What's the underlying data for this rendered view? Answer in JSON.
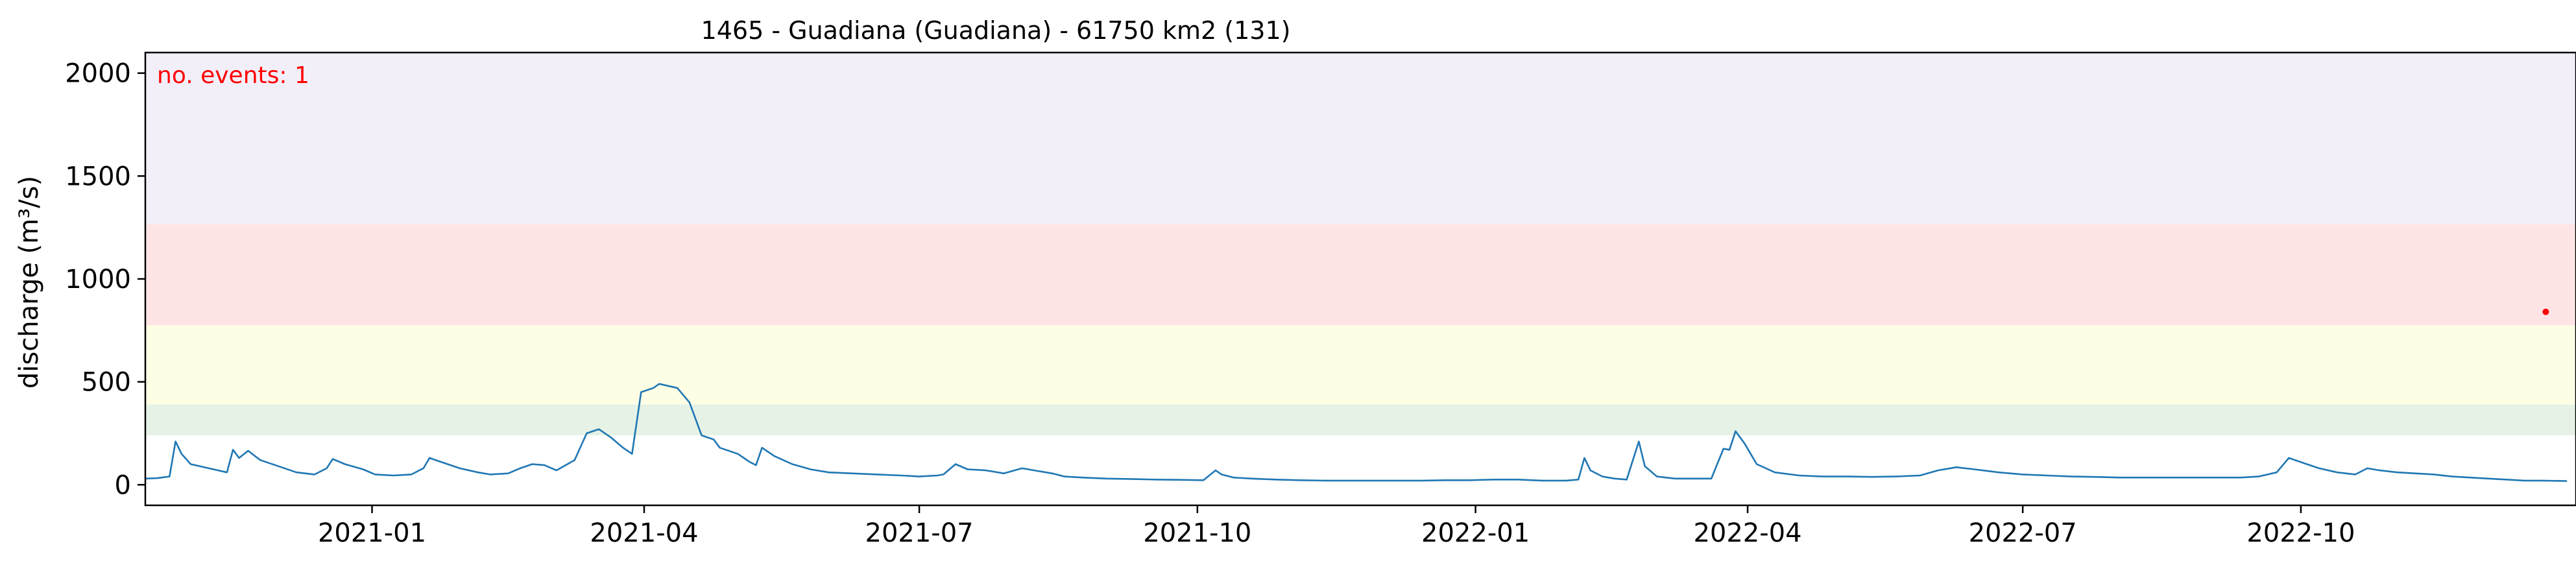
{
  "chart_data": {
    "type": "line",
    "title": "1465 - Guadiana (Guadiana) - 61750 km2 (131)",
    "ylabel": "discharge (m³/s)",
    "xlabel": "",
    "x_range": [
      "2020-10-18",
      "2022-12-31"
    ],
    "ylim": [
      -100,
      2100
    ],
    "y_ticks": [
      0,
      500,
      1000,
      1500,
      2000
    ],
    "x_ticks": [
      {
        "date": "2021-01-01",
        "label": "2021-01"
      },
      {
        "date": "2021-04-01",
        "label": "2021-04"
      },
      {
        "date": "2021-07-01",
        "label": "2021-07"
      },
      {
        "date": "2021-10-01",
        "label": "2021-10"
      },
      {
        "date": "2022-01-01",
        "label": "2022-01"
      },
      {
        "date": "2022-04-01",
        "label": "2022-04"
      },
      {
        "date": "2022-07-01",
        "label": "2022-07"
      },
      {
        "date": "2022-10-01",
        "label": "2022-10"
      }
    ],
    "threshold_bands": [
      {
        "from": 240,
        "to": 390,
        "color": "#e5f2e5"
      },
      {
        "from": 390,
        "to": 775,
        "color": "#fefee5"
      },
      {
        "from": 775,
        "to": 1265,
        "color": "#ffe4e6"
      },
      {
        "from": 1265,
        "to": 2100,
        "color": "#f2eff9"
      }
    ],
    "grid": false,
    "legend": "none",
    "series": [
      {
        "color": "#1f77b4",
        "points": [
          [
            "2020-10-18",
            30
          ],
          [
            "2020-10-22",
            32
          ],
          [
            "2020-10-26",
            40
          ],
          [
            "2020-10-28",
            210
          ],
          [
            "2020-10-30",
            150
          ],
          [
            "2020-11-02",
            100
          ],
          [
            "2020-11-08",
            80
          ],
          [
            "2020-11-14",
            60
          ],
          [
            "2020-11-16",
            170
          ],
          [
            "2020-11-18",
            130
          ],
          [
            "2020-11-21",
            165
          ],
          [
            "2020-11-25",
            120
          ],
          [
            "2020-12-01",
            90
          ],
          [
            "2020-12-07",
            60
          ],
          [
            "2020-12-13",
            50
          ],
          [
            "2020-12-17",
            80
          ],
          [
            "2020-12-19",
            125
          ],
          [
            "2020-12-23",
            100
          ],
          [
            "2020-12-29",
            75
          ],
          [
            "2021-01-02",
            50
          ],
          [
            "2021-01-08",
            45
          ],
          [
            "2021-01-14",
            50
          ],
          [
            "2021-01-18",
            80
          ],
          [
            "2021-01-20",
            130
          ],
          [
            "2021-01-24",
            110
          ],
          [
            "2021-01-30",
            80
          ],
          [
            "2021-02-05",
            60
          ],
          [
            "2021-02-09",
            50
          ],
          [
            "2021-02-15",
            55
          ],
          [
            "2021-02-19",
            80
          ],
          [
            "2021-02-23",
            100
          ],
          [
            "2021-02-27",
            95
          ],
          [
            "2021-03-03",
            70
          ],
          [
            "2021-03-09",
            120
          ],
          [
            "2021-03-13",
            250
          ],
          [
            "2021-03-17",
            270
          ],
          [
            "2021-03-21",
            230
          ],
          [
            "2021-03-25",
            180
          ],
          [
            "2021-03-28",
            150
          ],
          [
            "2021-03-31",
            450
          ],
          [
            "2021-04-04",
            470
          ],
          [
            "2021-04-06",
            490
          ],
          [
            "2021-04-12",
            470
          ],
          [
            "2021-04-16",
            400
          ],
          [
            "2021-04-20",
            240
          ],
          [
            "2021-04-24",
            220
          ],
          [
            "2021-04-26",
            180
          ],
          [
            "2021-05-02",
            150
          ],
          [
            "2021-05-06",
            110
          ],
          [
            "2021-05-08",
            95
          ],
          [
            "2021-05-10",
            180
          ],
          [
            "2021-05-14",
            140
          ],
          [
            "2021-05-20",
            100
          ],
          [
            "2021-05-26",
            75
          ],
          [
            "2021-06-01",
            60
          ],
          [
            "2021-06-09",
            55
          ],
          [
            "2021-06-17",
            50
          ],
          [
            "2021-06-25",
            45
          ],
          [
            "2021-07-01",
            40
          ],
          [
            "2021-07-07",
            45
          ],
          [
            "2021-07-09",
            50
          ],
          [
            "2021-07-13",
            100
          ],
          [
            "2021-07-17",
            75
          ],
          [
            "2021-07-23",
            70
          ],
          [
            "2021-07-29",
            55
          ],
          [
            "2021-08-04",
            80
          ],
          [
            "2021-08-08",
            70
          ],
          [
            "2021-08-14",
            55
          ],
          [
            "2021-08-18",
            40
          ],
          [
            "2021-08-24",
            35
          ],
          [
            "2021-09-01",
            30
          ],
          [
            "2021-09-09",
            28
          ],
          [
            "2021-09-17",
            25
          ],
          [
            "2021-09-25",
            24
          ],
          [
            "2021-10-03",
            22
          ],
          [
            "2021-10-07",
            70
          ],
          [
            "2021-10-09",
            50
          ],
          [
            "2021-10-13",
            35
          ],
          [
            "2021-10-19",
            30
          ],
          [
            "2021-10-27",
            25
          ],
          [
            "2021-11-04",
            22
          ],
          [
            "2021-11-12",
            20
          ],
          [
            "2021-11-20",
            20
          ],
          [
            "2021-11-28",
            20
          ],
          [
            "2021-12-06",
            20
          ],
          [
            "2021-12-14",
            20
          ],
          [
            "2021-12-22",
            22
          ],
          [
            "2021-12-30",
            22
          ],
          [
            "2022-01-07",
            25
          ],
          [
            "2022-01-15",
            25
          ],
          [
            "2022-01-23",
            20
          ],
          [
            "2022-01-31",
            20
          ],
          [
            "2022-02-04",
            25
          ],
          [
            "2022-02-06",
            130
          ],
          [
            "2022-02-08",
            70
          ],
          [
            "2022-02-12",
            40
          ],
          [
            "2022-02-16",
            30
          ],
          [
            "2022-02-20",
            25
          ],
          [
            "2022-02-24",
            210
          ],
          [
            "2022-02-26",
            90
          ],
          [
            "2022-03-02",
            40
          ],
          [
            "2022-03-08",
            30
          ],
          [
            "2022-03-14",
            30
          ],
          [
            "2022-03-20",
            30
          ],
          [
            "2022-03-24",
            175
          ],
          [
            "2022-03-26",
            170
          ],
          [
            "2022-03-28",
            260
          ],
          [
            "2022-03-31",
            200
          ],
          [
            "2022-04-04",
            100
          ],
          [
            "2022-04-10",
            60
          ],
          [
            "2022-04-18",
            45
          ],
          [
            "2022-04-26",
            40
          ],
          [
            "2022-05-04",
            40
          ],
          [
            "2022-05-12",
            38
          ],
          [
            "2022-05-20",
            40
          ],
          [
            "2022-05-28",
            45
          ],
          [
            "2022-06-03",
            70
          ],
          [
            "2022-06-09",
            85
          ],
          [
            "2022-06-15",
            75
          ],
          [
            "2022-06-23",
            60
          ],
          [
            "2022-07-01",
            50
          ],
          [
            "2022-07-09",
            45
          ],
          [
            "2022-07-17",
            40
          ],
          [
            "2022-07-25",
            38
          ],
          [
            "2022-08-02",
            35
          ],
          [
            "2022-08-10",
            35
          ],
          [
            "2022-08-18",
            35
          ],
          [
            "2022-08-26",
            35
          ],
          [
            "2022-09-03",
            35
          ],
          [
            "2022-09-11",
            35
          ],
          [
            "2022-09-17",
            40
          ],
          [
            "2022-09-23",
            60
          ],
          [
            "2022-09-27",
            130
          ],
          [
            "2022-10-01",
            110
          ],
          [
            "2022-10-07",
            80
          ],
          [
            "2022-10-13",
            60
          ],
          [
            "2022-10-19",
            50
          ],
          [
            "2022-10-23",
            80
          ],
          [
            "2022-10-27",
            70
          ],
          [
            "2022-11-02",
            60
          ],
          [
            "2022-11-08",
            55
          ],
          [
            "2022-11-14",
            50
          ],
          [
            "2022-11-20",
            40
          ],
          [
            "2022-11-26",
            35
          ],
          [
            "2022-12-02",
            30
          ],
          [
            "2022-12-08",
            25
          ],
          [
            "2022-12-14",
            20
          ],
          [
            "2022-12-20",
            20
          ],
          [
            "2022-12-28",
            18
          ]
        ]
      }
    ],
    "annotation": {
      "text": "no. events: 1",
      "color": "#ff0000"
    },
    "event_point": {
      "date": "2022-12-21",
      "value": 840,
      "color": "#ff0000"
    }
  }
}
